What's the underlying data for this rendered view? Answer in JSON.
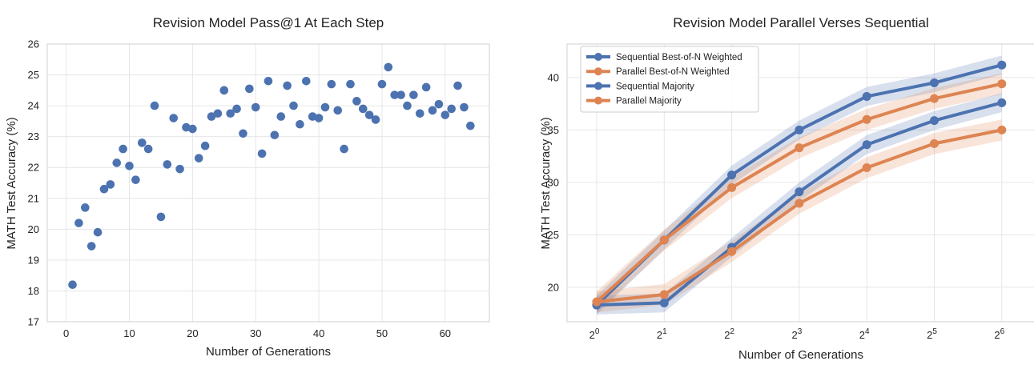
{
  "chart_data": [
    {
      "type": "scatter",
      "title": "Revision Model Pass@1 At Each Step",
      "xlabel": "Number of Generations",
      "ylabel": "MATH Test Accuracy (%)",
      "xlim": [
        -3,
        67
      ],
      "ylim": [
        17,
        26
      ],
      "xticks": [
        "0",
        "10",
        "20",
        "30",
        "40",
        "50",
        "60"
      ],
      "yticks": [
        "17",
        "18",
        "19",
        "20",
        "21",
        "22",
        "23",
        "24",
        "25",
        "26"
      ],
      "grid": true,
      "color": "#4c72b0",
      "series": [
        {
          "x": [
            1,
            2,
            3,
            4,
            5,
            6,
            7,
            8,
            9,
            10,
            11,
            12,
            13,
            14,
            15,
            16,
            17,
            18,
            19,
            20,
            21,
            22,
            23,
            24,
            25,
            26,
            27,
            28,
            29,
            30,
            31,
            32,
            33,
            34,
            35,
            36,
            37,
            38,
            39,
            40,
            41,
            42,
            43,
            44,
            45,
            46,
            47,
            48,
            49,
            50,
            51,
            52,
            53,
            54,
            55,
            56,
            57,
            58,
            59,
            60,
            61,
            62,
            63,
            64
          ],
          "y": [
            18.2,
            20.2,
            20.7,
            19.45,
            19.9,
            21.3,
            21.45,
            22.15,
            22.6,
            22.05,
            21.6,
            22.8,
            22.6,
            24.0,
            20.4,
            22.1,
            23.6,
            21.95,
            23.3,
            23.25,
            22.3,
            22.7,
            23.65,
            23.75,
            24.5,
            23.75,
            23.9,
            23.1,
            24.55,
            23.95,
            22.45,
            24.8,
            23.05,
            23.65,
            24.65,
            24.0,
            23.4,
            24.8,
            23.65,
            23.6,
            23.95,
            24.7,
            23.85,
            22.6,
            24.7,
            24.15,
            23.9,
            23.7,
            23.55,
            24.7,
            25.25,
            24.35,
            24.35,
            24.0,
            24.35,
            23.75,
            24.6,
            23.85,
            24.05,
            23.7,
            23.9,
            24.65,
            23.95,
            23.35
          ]
        }
      ]
    },
    {
      "type": "line",
      "title": "Revision Model Parallel Verses Sequential",
      "xlabel": "Number of Generations",
      "ylabel": "MATH Test Accuracy (%)",
      "x_exponents": [
        0,
        1,
        2,
        3,
        4,
        5,
        6
      ],
      "x_tick_base": "2",
      "x_scale": "log2",
      "ylim": [
        16.7,
        43.2
      ],
      "yticks": [
        "20",
        "25",
        "30",
        "35",
        "40"
      ],
      "grid": true,
      "legend_position": "top-left",
      "series": [
        {
          "name": "Sequential Best-of-N Weighted",
          "color": "#4c72b0",
          "values": [
            18.3,
            24.5,
            30.7,
            35.0,
            38.2,
            39.5,
            41.2
          ],
          "band": 0.9
        },
        {
          "name": "Parallel Best-of-N Weighted",
          "color": "#dd8452",
          "values": [
            18.6,
            24.5,
            29.5,
            33.3,
            36.0,
            38.0,
            39.4
          ],
          "band": 1.0
        },
        {
          "name": "Sequential Majority",
          "color": "#4c72b0",
          "values": [
            18.3,
            18.5,
            23.8,
            29.1,
            33.6,
            35.9,
            37.6
          ],
          "band": 0.9
        },
        {
          "name": "Parallel Majority",
          "color": "#dd8452",
          "values": [
            18.6,
            19.3,
            23.4,
            28.0,
            31.4,
            33.7,
            35.0
          ],
          "band": 1.0
        }
      ]
    }
  ]
}
